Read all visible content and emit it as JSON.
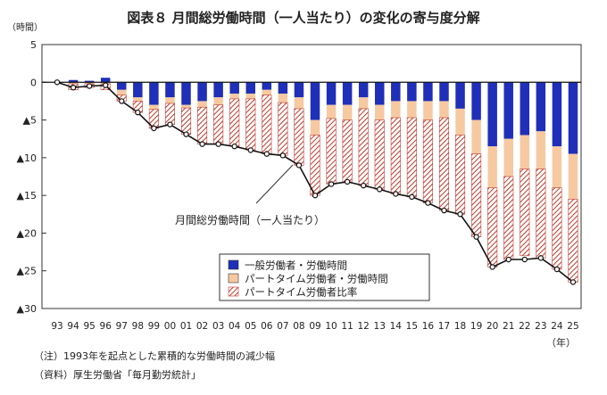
{
  "chart_data": {
    "type": "bar",
    "stacked": true,
    "title": "図表８ 月間総労働時間（一人当たり）の変化の寄与度分解",
    "ylabel": "（時間）",
    "xlabel": "（年）",
    "ylim": [
      -30,
      5
    ],
    "yticks": [
      {
        "value": 5,
        "label": "5"
      },
      {
        "value": 0,
        "label": "0"
      },
      {
        "value": -5,
        "label": "▲5"
      },
      {
        "value": -10,
        "label": "▲10"
      },
      {
        "value": -15,
        "label": "▲15"
      },
      {
        "value": -20,
        "label": "▲20"
      },
      {
        "value": -25,
        "label": "▲25"
      },
      {
        "value": -30,
        "label": "▲30"
      }
    ],
    "categories": [
      "93",
      "94",
      "95",
      "96",
      "97",
      "98",
      "99",
      "00",
      "01",
      "02",
      "03",
      "04",
      "05",
      "06",
      "07",
      "08",
      "09",
      "10",
      "11",
      "12",
      "13",
      "14",
      "15",
      "16",
      "17",
      "18",
      "19",
      "20",
      "21",
      "22",
      "23",
      "24",
      "25"
    ],
    "series": [
      {
        "name": "一般労働者・労働時間",
        "color": "#1f2fb8",
        "style": "solid",
        "values": [
          0,
          0.3,
          0.2,
          0.6,
          -1.0,
          -2.0,
          -3.0,
          -2.0,
          -3.0,
          -2.5,
          -2.0,
          -1.5,
          -1.5,
          -1.0,
          -1.5,
          -2.0,
          -5.0,
          -3.0,
          -3.0,
          -2.0,
          -3.0,
          -2.5,
          -2.5,
          -2.5,
          -2.5,
          -3.5,
          -5.0,
          -8.5,
          -7.5,
          -7.0,
          -6.5,
          -8.5,
          -9.5
        ]
      },
      {
        "name": "パートタイム労働者・労働時間",
        "color": "#f6c9a1",
        "style": "solid",
        "values": [
          0,
          -0.2,
          -0.2,
          -0.2,
          -0.7,
          -0.5,
          -0.6,
          -0.8,
          -0.4,
          -0.8,
          -1.0,
          -0.7,
          -0.7,
          -0.7,
          -1.2,
          -1.5,
          -2.0,
          -1.8,
          -2.0,
          -1.5,
          -2.0,
          -2.2,
          -2.2,
          -2.5,
          -2.2,
          -3.5,
          -4.5,
          -5.5,
          -5.0,
          -4.5,
          -5.0,
          -5.5,
          -6.0
        ]
      },
      {
        "name": "パートタイム労働者比率",
        "color": "#c0392b",
        "style": "hatched",
        "values": [
          0,
          -0.8,
          -0.5,
          -0.8,
          -0.8,
          -1.5,
          -2.5,
          -2.8,
          -3.5,
          -4.9,
          -5.2,
          -6.3,
          -6.8,
          -7.8,
          -7.0,
          -7.5,
          -8.0,
          -8.7,
          -8.2,
          -10.2,
          -9.2,
          -10.1,
          -10.5,
          -11.0,
          -12.3,
          -10.5,
          -11.0,
          -10.5,
          -11.0,
          -11.5,
          -11.8,
          -10.8,
          -11.0
        ]
      }
    ],
    "line": {
      "name": "月間総労働時間（一人当たり）",
      "values": [
        0,
        -0.7,
        -0.5,
        -0.4,
        -2.5,
        -4.0,
        -6.1,
        -5.6,
        -6.9,
        -8.2,
        -8.2,
        -8.5,
        -9.0,
        -9.5,
        -9.7,
        -11.0,
        -15.0,
        -13.5,
        -13.2,
        -13.7,
        -14.2,
        -14.8,
        -15.2,
        -16.0,
        -17.0,
        -17.5,
        -20.5,
        -24.5,
        -23.5,
        -23.5,
        -23.3,
        -24.8,
        -26.5
      ]
    },
    "line_annotation": "月間総労働時間（一人当たり）",
    "legend_position": "bottom-center",
    "grid": false
  },
  "notes": [
    "（注）1993年を起点とした累積的な労働時間の減少幅",
    "（資料）厚生労働省「毎月勤労統計」"
  ]
}
